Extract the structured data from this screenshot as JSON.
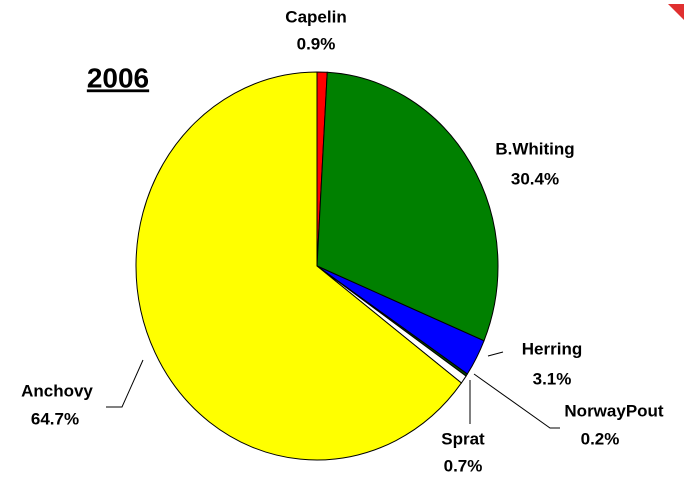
{
  "chart_data": {
    "type": "pie",
    "title": "2006",
    "categories": [
      "Capelin",
      "B.Whiting",
      "Herring",
      "NorwayPout",
      "Sprat",
      "Anchovy"
    ],
    "values": [
      0.9,
      30.4,
      3.1,
      0.2,
      0.7,
      64.7
    ],
    "value_labels": [
      "0.9%",
      "30.4%",
      "3.1%",
      "0.2%",
      "0.7%",
      "64.7%"
    ],
    "colors": [
      "#ff0000",
      "#008000",
      "#0000ff",
      "#005000",
      "#ffffff",
      "#ffff00"
    ]
  }
}
